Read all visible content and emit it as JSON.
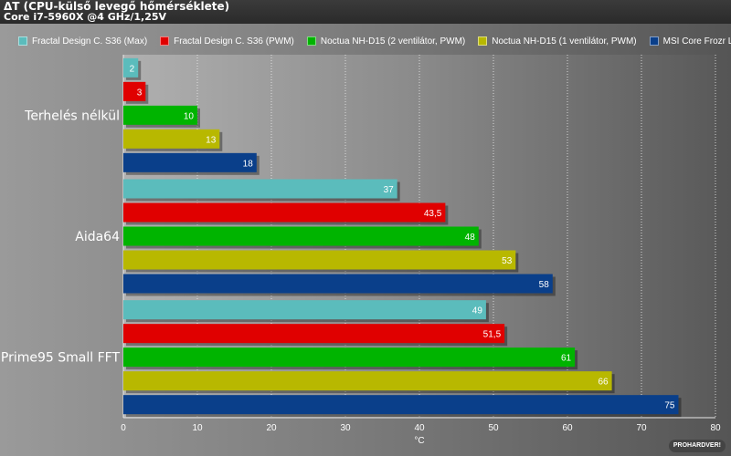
{
  "chart_data": {
    "type": "bar",
    "orientation": "horizontal",
    "title": "ΔT (CPU-külső levegő hőmérséklete)",
    "subtitle": "Core i7-5960X @4 GHz/1,25V",
    "xlabel": "°C",
    "xlim": [
      0,
      80
    ],
    "xticks": [
      0,
      10,
      20,
      30,
      40,
      50,
      60,
      70,
      80
    ],
    "legend_position": "top",
    "categories": [
      "Terhelés nélkül",
      "Aida64",
      "Prime95 Small FFT"
    ],
    "series": [
      {
        "name": "Fractal Design C. S36 (Max)",
        "color": "#5bbcbc",
        "values": [
          2,
          37,
          49
        ],
        "labels": [
          "2",
          "37",
          "49"
        ]
      },
      {
        "name": "Fractal Design C. S36 (PWM)",
        "color": "#e00000",
        "values": [
          3,
          43.5,
          51.5
        ],
        "labels": [
          "3",
          "43,5",
          "51,5"
        ]
      },
      {
        "name": "Noctua NH-D15 (2 ventilátor, PWM)",
        "color": "#00b400",
        "values": [
          10,
          48,
          61
        ],
        "labels": [
          "10",
          "48",
          "61"
        ]
      },
      {
        "name": "Noctua NH-D15 (1 ventilátor, PWM)",
        "color": "#b8b800",
        "values": [
          13,
          53,
          66
        ],
        "labels": [
          "13",
          "53",
          "66"
        ]
      },
      {
        "name": "MSI Core Frozr L (PWM)",
        "color": "#0a3f8a",
        "values": [
          18,
          58,
          75
        ],
        "labels": [
          "18",
          "58",
          "75"
        ]
      }
    ]
  },
  "watermark": "PROHARDVER!"
}
